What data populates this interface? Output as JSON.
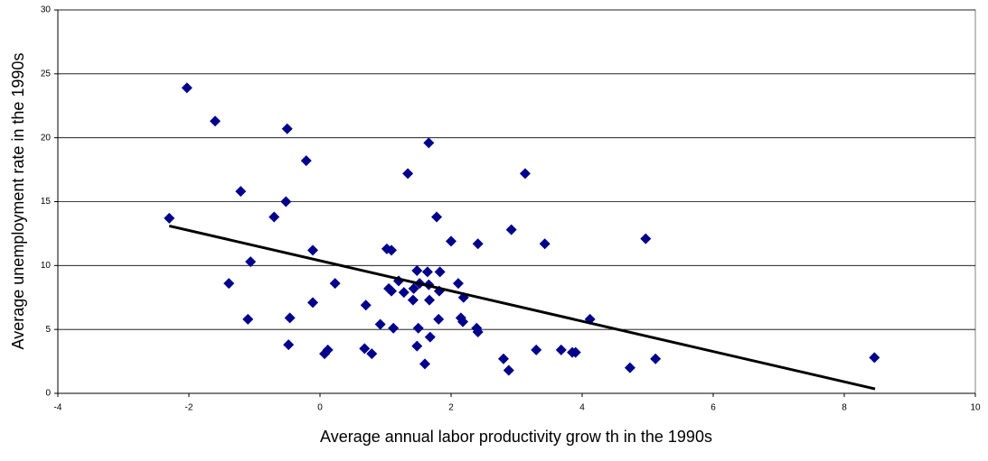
{
  "chart_data": {
    "type": "scatter",
    "x_label": "Average annual labor productivity grow th in the 1990s",
    "y_label": "Average unemployment rate in the 1990s",
    "x": [
      -2.3,
      -2.03,
      -1.6,
      -1.39,
      -1.21,
      -1.1,
      -1.06,
      -0.7,
      -0.5,
      -0.52,
      -0.46,
      -0.48,
      -0.21,
      -0.11,
      -0.11,
      0.07,
      0.12,
      0.23,
      0.68,
      0.7,
      0.79,
      0.92,
      1.02,
      1.09,
      1.05,
      1.09,
      1.12,
      1.2,
      1.28,
      1.34,
      1.42,
      1.43,
      1.48,
      1.48,
      1.5,
      1.52,
      1.6,
      1.64,
      1.66,
      1.66,
      1.68,
      1.67,
      1.78,
      1.82,
      1.83,
      1.81,
      2.0,
      2.11,
      2.15,
      2.18,
      2.19,
      2.39,
      2.41,
      2.41,
      2.8,
      2.88,
      2.92,
      3.13,
      3.3,
      3.43,
      3.68,
      3.85,
      3.9,
      4.12,
      4.73,
      4.97,
      5.12,
      8.46
    ],
    "values": [
      13.7,
      23.9,
      21.3,
      8.6,
      15.8,
      5.8,
      10.3,
      13.8,
      20.7,
      15.0,
      5.9,
      3.8,
      18.2,
      11.2,
      7.1,
      3.1,
      3.4,
      8.6,
      3.5,
      6.9,
      3.1,
      5.4,
      11.3,
      11.2,
      8.2,
      8.0,
      5.1,
      8.8,
      7.9,
      17.2,
      7.3,
      8.2,
      9.6,
      3.7,
      5.1,
      8.6,
      2.3,
      9.5,
      19.6,
      8.5,
      4.4,
      7.3,
      13.8,
      8.0,
      9.5,
      5.8,
      11.9,
      8.6,
      5.9,
      5.6,
      7.5,
      5.1,
      4.8,
      11.7,
      2.7,
      1.8,
      12.8,
      17.2,
      3.4,
      11.7,
      3.4,
      3.2,
      3.2,
      5.8,
      2.0,
      12.1,
      2.7,
      2.8
    ],
    "color": "#00008b",
    "trendline": {
      "x": [
        -2.3,
        8.47
      ],
      "values": [
        13.1,
        0.35
      ],
      "color": "#000000"
    },
    "xlim": [
      -4,
      10
    ],
    "xticks": [
      -4,
      -2,
      0,
      2,
      4,
      6,
      8,
      10
    ],
    "ylim": [
      0,
      30
    ],
    "yticks": [
      0,
      5,
      10,
      15,
      20,
      25,
      30
    ],
    "grid": true
  }
}
